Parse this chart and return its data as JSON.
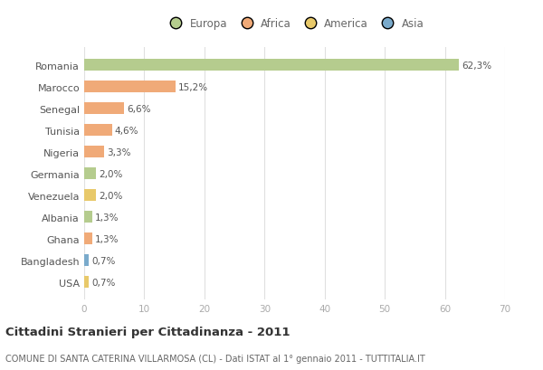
{
  "countries": [
    "Romania",
    "Marocco",
    "Senegal",
    "Tunisia",
    "Nigeria",
    "Germania",
    "Venezuela",
    "Albania",
    "Ghana",
    "Bangladesh",
    "USA"
  ],
  "values": [
    62.3,
    15.2,
    6.6,
    4.6,
    3.3,
    2.0,
    2.0,
    1.3,
    1.3,
    0.7,
    0.7
  ],
  "labels": [
    "62,3%",
    "15,2%",
    "6,6%",
    "4,6%",
    "3,3%",
    "2,0%",
    "2,0%",
    "1,3%",
    "1,3%",
    "0,7%",
    "0,7%"
  ],
  "colors": [
    "#b5cc8e",
    "#f0aa78",
    "#f0aa78",
    "#f0aa78",
    "#f0aa78",
    "#b5cc8e",
    "#e8c96a",
    "#b5cc8e",
    "#f0aa78",
    "#7aaacb",
    "#e8c96a"
  ],
  "legend_labels": [
    "Europa",
    "Africa",
    "America",
    "Asia"
  ],
  "legend_colors": [
    "#b5cc8e",
    "#f0aa78",
    "#e8c96a",
    "#7aaacb"
  ],
  "xlim": [
    0,
    70
  ],
  "xticks": [
    0,
    10,
    20,
    30,
    40,
    50,
    60,
    70
  ],
  "title": "Cittadini Stranieri per Cittadinanza - 2011",
  "subtitle": "COMUNE DI SANTA CATERINA VILLARMOSA (CL) - Dati ISTAT al 1° gennaio 2011 - TUTTITALIA.IT",
  "background_color": "#ffffff",
  "bar_height": 0.55
}
